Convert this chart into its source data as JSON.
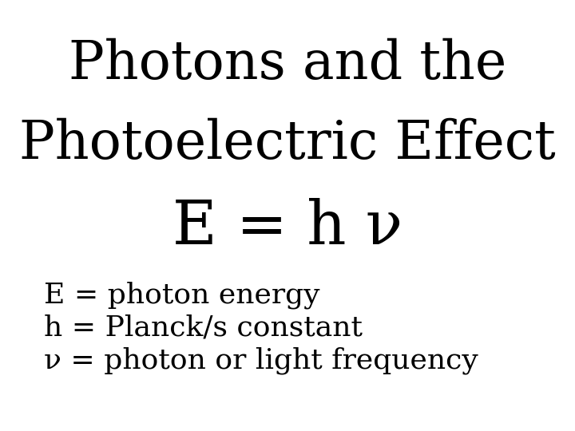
{
  "background_color": "#ffffff",
  "title_line1": "Photons and the",
  "title_line2": "Photoelectric Effect",
  "formula": "E = h ν",
  "bullet1": "E = photon energy",
  "bullet2": "h = Planck/s constant",
  "bullet3": "ν = photon or light frequency",
  "title_fontsize": 48,
  "formula_fontsize": 55,
  "bullet_fontsize": 26,
  "text_color": "#000000",
  "font_family": "serif"
}
